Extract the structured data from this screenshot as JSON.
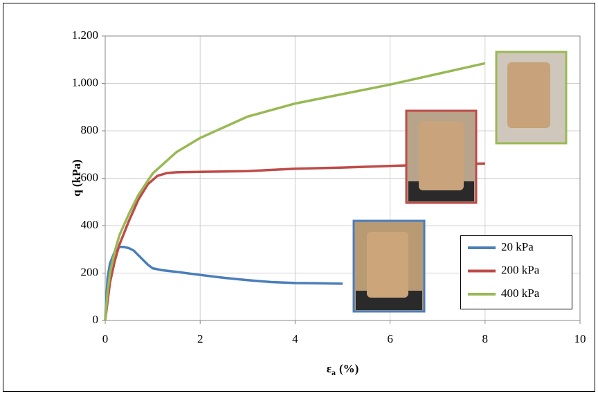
{
  "chart_data": {
    "type": "line",
    "xlabel": {
      "main": "ε",
      "sub": "a",
      "rest": "(%)"
    },
    "ylabel": "q (kPa)",
    "xlim": [
      0,
      10
    ],
    "xticks": [
      0,
      2,
      4,
      6,
      8,
      10
    ],
    "ylim": [
      0,
      1200
    ],
    "yticks": [
      0,
      200,
      400,
      600,
      800,
      {
        "value": 1000,
        "label": "1.000"
      },
      {
        "value": 1200,
        "label": "1.200"
      }
    ],
    "grid": true,
    "legend": "lower right",
    "series": [
      {
        "name": "20 kPa",
        "color": "#4a7ebb",
        "x": [
          0,
          0.05,
          0.1,
          0.2,
          0.3,
          0.4,
          0.5,
          0.6,
          0.7,
          0.8,
          0.9,
          1.0,
          1.2,
          1.5,
          2,
          2.5,
          3,
          3.5,
          4,
          4.5,
          5
        ],
        "values": [
          0,
          180,
          240,
          290,
          310,
          310,
          305,
          295,
          275,
          255,
          235,
          220,
          212,
          205,
          192,
          180,
          170,
          162,
          158,
          157,
          155
        ]
      },
      {
        "name": "200 kPa",
        "color": "#be4b48",
        "x": [
          0,
          0.05,
          0.1,
          0.2,
          0.3,
          0.5,
          0.7,
          0.9,
          1.1,
          1.3,
          1.5,
          2,
          3,
          4,
          5,
          6,
          7,
          8
        ],
        "values": [
          0,
          80,
          160,
          250,
          320,
          420,
          510,
          575,
          610,
          622,
          625,
          627,
          630,
          640,
          645,
          652,
          658,
          662
        ]
      },
      {
        "name": "400 kPa",
        "color": "#98b954",
        "x": [
          0,
          0.05,
          0.1,
          0.2,
          0.3,
          0.5,
          0.7,
          1,
          1.5,
          2,
          3,
          4,
          5,
          6,
          7,
          8
        ],
        "values": [
          0,
          120,
          200,
          290,
          360,
          450,
          530,
          620,
          710,
          770,
          860,
          915,
          955,
          995,
          1040,
          1085
        ]
      }
    ]
  }
}
